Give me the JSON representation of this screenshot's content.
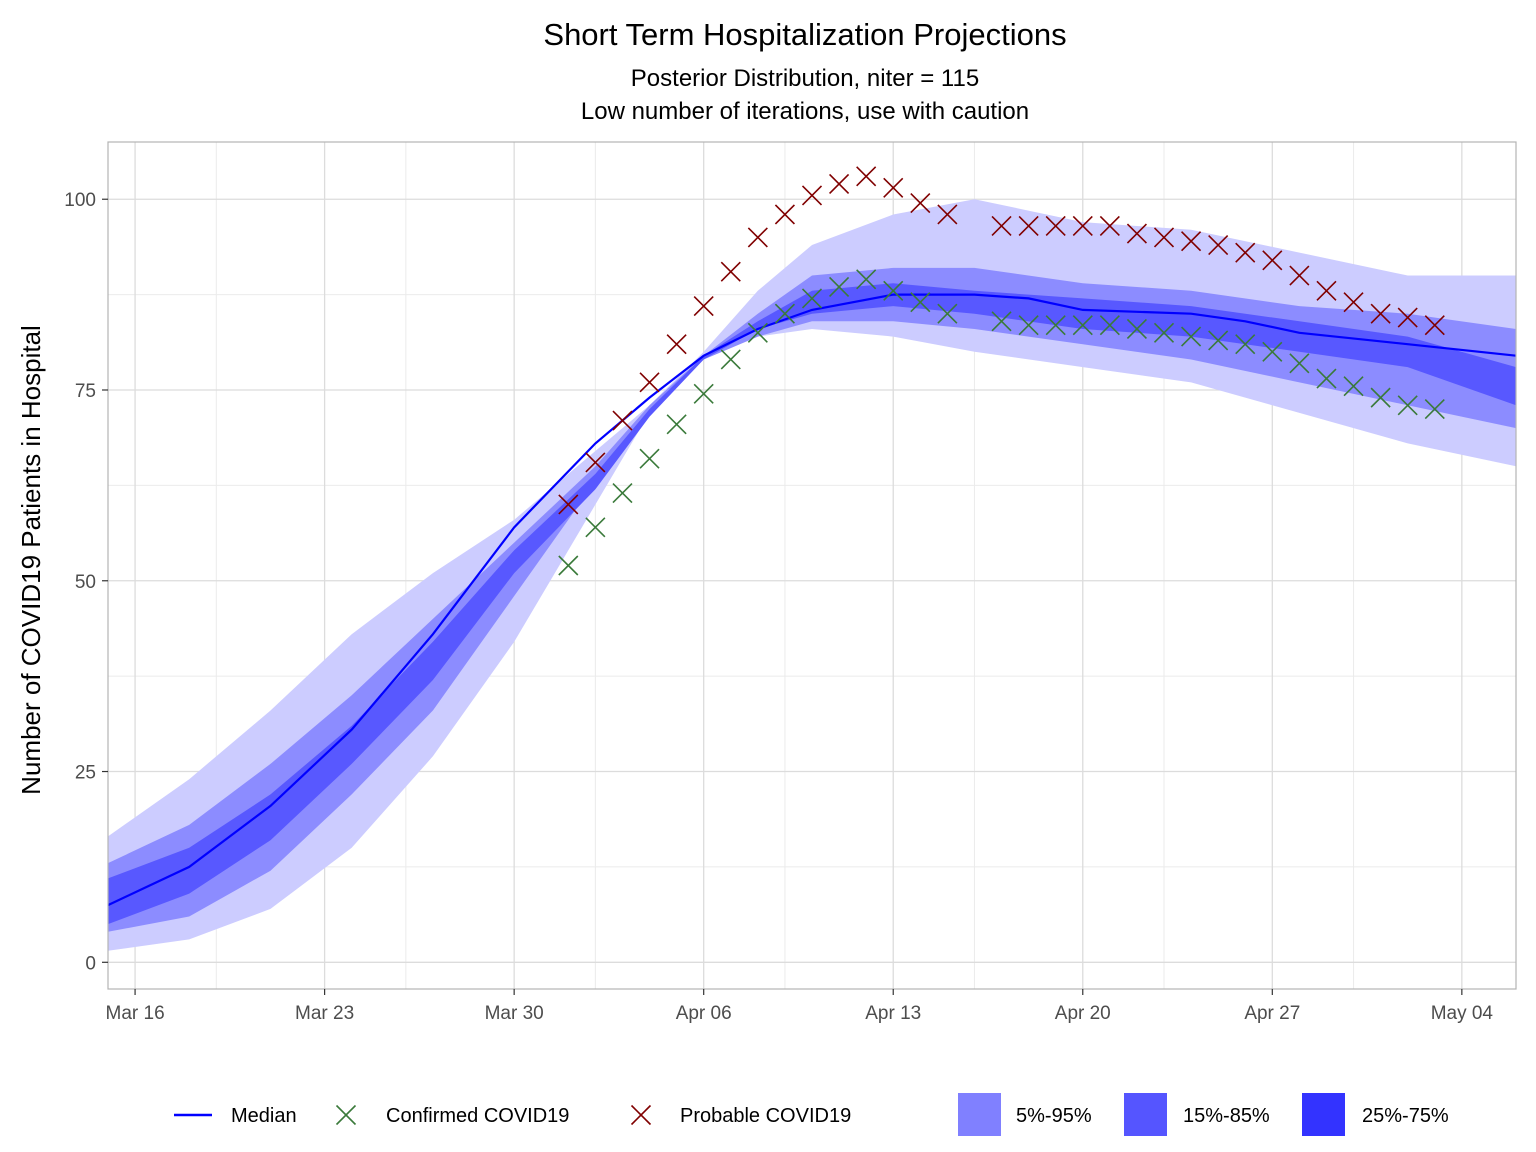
{
  "chart_data": {
    "type": "line",
    "title": "Short Term Hospitalization Projections",
    "subtitle_lines": [
      "Posterior Distribution, niter = 115",
      "Low number of iterations, use with caution"
    ],
    "xlabel": "",
    "ylabel": "Number of COVID19 Patients in Hospital",
    "x_start": "2020-03-15",
    "x_end": "2020-05-06",
    "xlim": [
      "2020-03-15",
      "2020-05-06"
    ],
    "ylim": [
      -3.5,
      107.5
    ],
    "x_ticks": [
      {
        "date": "2020-03-16",
        "label": "Mar 16"
      },
      {
        "date": "2020-03-23",
        "label": "Mar 23"
      },
      {
        "date": "2020-03-30",
        "label": "Mar 30"
      },
      {
        "date": "2020-04-06",
        "label": "Apr 06"
      },
      {
        "date": "2020-04-13",
        "label": "Apr 13"
      },
      {
        "date": "2020-04-20",
        "label": "Apr 20"
      },
      {
        "date": "2020-04-27",
        "label": "Apr 27"
      },
      {
        "date": "2020-05-04",
        "label": "May 04"
      }
    ],
    "y_ticks": [
      0,
      25,
      50,
      75,
      100
    ],
    "grid": true,
    "colors": {
      "band_5_95": "#ccccff",
      "band_15_85": "#8c8cff",
      "band_25_75": "#5858ff",
      "median": "#0000ff",
      "confirmed": "#3a7a3a",
      "probable": "#800000",
      "legend_5_95": "#8080ff",
      "legend_15_85": "#5555ff",
      "legend_25_75": "#3333ff"
    },
    "band_dates": [
      "2020-03-15",
      "2020-03-18",
      "2020-03-21",
      "2020-03-24",
      "2020-03-27",
      "2020-03-30",
      "2020-04-02",
      "2020-04-04",
      "2020-04-06",
      "2020-04-08",
      "2020-04-10",
      "2020-04-13",
      "2020-04-16",
      "2020-04-20",
      "2020-04-24",
      "2020-04-28",
      "2020-05-02",
      "2020-05-06"
    ],
    "bands": [
      {
        "name": "5%-95%",
        "upper": [
          16.5,
          24,
          33,
          43,
          51,
          58,
          67,
          73,
          80,
          88,
          94,
          98,
          100,
          97,
          96,
          93,
          90,
          90
        ],
        "lower": [
          1.5,
          3,
          7,
          15,
          27,
          42,
          60,
          72,
          79,
          82,
          83,
          82,
          80,
          78,
          76,
          72,
          68,
          65
        ]
      },
      {
        "name": "15%-85%",
        "upper": [
          13,
          18,
          26,
          35,
          45,
          55,
          65,
          73,
          79.5,
          85,
          90,
          91,
          91,
          89,
          88,
          86,
          85,
          83
        ],
        "lower": [
          4,
          6,
          12,
          22,
          33,
          48,
          63,
          72,
          79,
          82,
          84,
          84,
          83,
          81,
          79,
          76,
          73,
          70
        ]
      },
      {
        "name": "25%-75%",
        "upper": [
          11,
          15,
          22,
          31,
          42,
          54,
          64,
          72.5,
          79.5,
          84,
          88,
          89,
          88,
          87,
          86,
          84,
          82,
          78
        ]
      },
      {
        "name": "25%-75%-lower",
        "lower": [
          5,
          9,
          16,
          26,
          37,
          51,
          62,
          71.5,
          79,
          83,
          85,
          86,
          85,
          83,
          82,
          80,
          78,
          73
        ]
      }
    ],
    "series": [
      {
        "name": "Median",
        "x": [
          "2020-03-15",
          "2020-03-18",
          "2020-03-21",
          "2020-03-24",
          "2020-03-27",
          "2020-03-30",
          "2020-04-02",
          "2020-04-04",
          "2020-04-06",
          "2020-04-08",
          "2020-04-10",
          "2020-04-13",
          "2020-04-16",
          "2020-04-18",
          "2020-04-20",
          "2020-04-24",
          "2020-04-26",
          "2020-04-28",
          "2020-05-02",
          "2020-05-06"
        ],
        "y": [
          7.5,
          12.5,
          20.5,
          30.5,
          43,
          57,
          68,
          74,
          79.5,
          83,
          85.5,
          87.5,
          87.5,
          87,
          85.5,
          85,
          84,
          82.5,
          81,
          79.5
        ]
      },
      {
        "name": "Confirmed COVID19",
        "x": [
          "2020-04-01",
          "2020-04-02",
          "2020-04-03",
          "2020-04-04",
          "2020-04-05",
          "2020-04-06",
          "2020-04-07",
          "2020-04-08",
          "2020-04-09",
          "2020-04-10",
          "2020-04-11",
          "2020-04-12",
          "2020-04-13",
          "2020-04-14",
          "2020-04-15",
          "2020-04-17",
          "2020-04-18",
          "2020-04-19",
          "2020-04-20",
          "2020-04-21",
          "2020-04-22",
          "2020-04-23",
          "2020-04-24",
          "2020-04-25",
          "2020-04-26",
          "2020-04-27",
          "2020-04-28",
          "2020-04-29",
          "2020-04-30",
          "2020-05-01",
          "2020-05-02",
          "2020-05-03"
        ],
        "y": [
          52,
          57,
          61.5,
          66,
          70.5,
          74.5,
          79,
          82.5,
          85,
          87,
          88.5,
          89.5,
          88,
          86.5,
          85,
          84,
          83.5,
          83.5,
          83.5,
          83.5,
          83,
          82.5,
          82,
          81.5,
          81,
          80,
          78.5,
          76.5,
          75.5,
          74,
          73,
          72.5
        ]
      },
      {
        "name": "Probable COVID19",
        "x": [
          "2020-04-01",
          "2020-04-02",
          "2020-04-03",
          "2020-04-04",
          "2020-04-05",
          "2020-04-06",
          "2020-04-07",
          "2020-04-08",
          "2020-04-09",
          "2020-04-10",
          "2020-04-11",
          "2020-04-12",
          "2020-04-13",
          "2020-04-14",
          "2020-04-15",
          "2020-04-17",
          "2020-04-18",
          "2020-04-19",
          "2020-04-20",
          "2020-04-21",
          "2020-04-22",
          "2020-04-23",
          "2020-04-24",
          "2020-04-25",
          "2020-04-26",
          "2020-04-27",
          "2020-04-28",
          "2020-04-29",
          "2020-04-30",
          "2020-05-01",
          "2020-05-02",
          "2020-05-03"
        ],
        "y": [
          60,
          65.5,
          71,
          76,
          81,
          86,
          90.5,
          95,
          98,
          100.5,
          102,
          103,
          101.5,
          99.5,
          98,
          96.5,
          96.5,
          96.5,
          96.5,
          96.5,
          95.5,
          95,
          94.5,
          94,
          93,
          92,
          90,
          88,
          86.5,
          85,
          84.5,
          83.5
        ]
      }
    ],
    "legend": {
      "placement": "bottom",
      "items": [
        {
          "label": "Median",
          "kind": "line"
        },
        {
          "label": "Confirmed COVID19",
          "kind": "cross-confirmed"
        },
        {
          "label": "Probable COVID19",
          "kind": "cross-probable"
        },
        {
          "label": "5%-95%",
          "kind": "fill-5-95"
        },
        {
          "label": "15%-85%",
          "kind": "fill-15-85"
        },
        {
          "label": "25%-75%",
          "kind": "fill-25-75"
        }
      ]
    }
  }
}
